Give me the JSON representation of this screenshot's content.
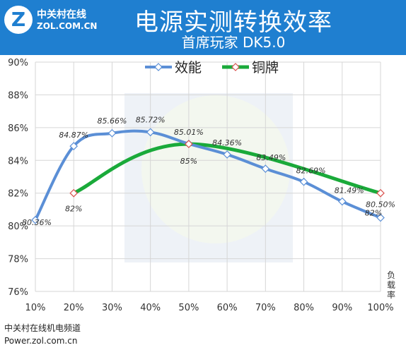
{
  "header": {
    "logo_icon": "zol-logo-icon",
    "logo_cn": "中关村在线",
    "logo_en": "ZOL.COM.CN",
    "title": "电源实测转换效率",
    "subtitle": "首席玩家 DK5.0"
  },
  "footer": {
    "source_cn": "中关村在线机电频道",
    "url": "Power.zol.com.cn"
  },
  "chart_data": {
    "type": "line",
    "x": [
      "10%",
      "20%",
      "30%",
      "40%",
      "50%",
      "60%",
      "70%",
      "80%",
      "90%",
      "100%"
    ],
    "xlabel": "负载率",
    "ylim": [
      76,
      90
    ],
    "yticks": [
      "76%",
      "78%",
      "80%",
      "82%",
      "84%",
      "86%",
      "88%",
      "90%"
    ],
    "grid": true,
    "legend_position": "top-center",
    "series": [
      {
        "name": "效能",
        "color": "#5b8fd6",
        "marker": "diamond",
        "values": [
          80.36,
          84.87,
          85.66,
          85.72,
          85.01,
          84.36,
          83.49,
          82.69,
          81.49,
          80.5
        ],
        "labels": [
          "80.36%",
          "84.87%",
          "85.66%",
          "85.72%",
          "85.01%",
          "84.36%",
          "83.49%",
          "82.69%",
          "81.49%",
          "80.50%"
        ]
      },
      {
        "name": "铜牌",
        "color": "#1aaa3a",
        "marker": "diamond",
        "x": [
          "20%",
          "50%",
          "100%"
        ],
        "values": [
          82,
          85,
          82
        ],
        "labels": [
          "82%",
          "85%",
          "82%"
        ]
      }
    ]
  }
}
